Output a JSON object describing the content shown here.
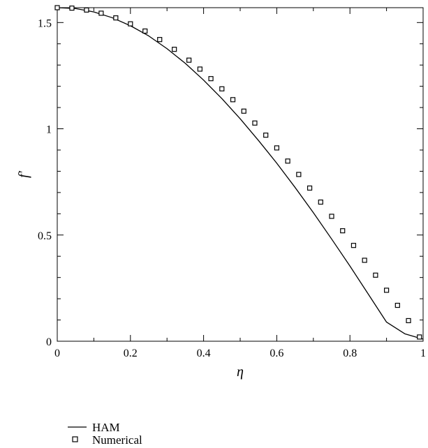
{
  "chart_data": {
    "type": "line",
    "xlabel": "η",
    "ylabel": "f′",
    "xlim": [
      0,
      1
    ],
    "ylim": [
      0,
      1.57
    ],
    "x_ticks": [
      0,
      0.2,
      0.4,
      0.6,
      0.8,
      1
    ],
    "x_tick_labels": [
      "0",
      "0.2",
      "0.4",
      "0.6",
      "0.8",
      "1"
    ],
    "y_ticks": [
      0,
      0.5,
      1,
      1.5
    ],
    "y_tick_labels": [
      "0",
      "0.5",
      "1",
      "1.5"
    ],
    "legend_position": "bottom-left, below plot",
    "grid": false,
    "series": [
      {
        "name": "HAM",
        "style": "line",
        "color": "#000000",
        "x": [
          0,
          0.05,
          0.1,
          0.15,
          0.2,
          0.25,
          0.3,
          0.35,
          0.4,
          0.45,
          0.5,
          0.55,
          0.6,
          0.65,
          0.7,
          0.75,
          0.8,
          0.85,
          0.9,
          0.95,
          1.0
        ],
        "y": [
          1.57,
          1.566,
          1.55,
          1.523,
          1.485,
          1.437,
          1.377,
          1.308,
          1.229,
          1.142,
          1.047,
          0.945,
          0.838,
          0.724,
          0.605,
          0.481,
          0.354,
          0.222,
          0.09,
          0.035,
          0.01
        ]
      },
      {
        "name": "Numerical",
        "style": "square-markers",
        "color": "#000000",
        "x": [
          0,
          0.04,
          0.08,
          0.12,
          0.16,
          0.2,
          0.24,
          0.28,
          0.32,
          0.36,
          0.39,
          0.42,
          0.45,
          0.48,
          0.51,
          0.54,
          0.57,
          0.6,
          0.63,
          0.66,
          0.69,
          0.72,
          0.75,
          0.78,
          0.81,
          0.84,
          0.87,
          0.9,
          0.93,
          0.96,
          0.99
        ],
        "y": [
          1.57,
          1.568,
          1.559,
          1.544,
          1.522,
          1.494,
          1.46,
          1.42,
          1.374,
          1.323,
          1.281,
          1.236,
          1.188,
          1.137,
          1.083,
          1.027,
          0.97,
          0.91,
          0.848,
          0.785,
          0.721,
          0.655,
          0.588,
          0.52,
          0.451,
          0.381,
          0.311,
          0.24,
          0.169,
          0.097,
          0.02
        ]
      }
    ]
  }
}
